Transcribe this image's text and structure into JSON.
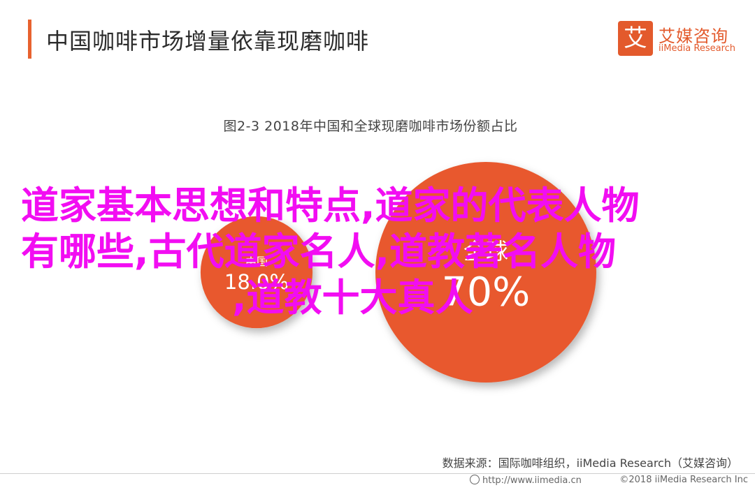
{
  "header": {
    "title": "中国咖啡市场增量依靠现磨咖啡",
    "accent_color": "#e8622f"
  },
  "logo": {
    "mark": "艾",
    "name_cn": "艾媒咨询",
    "name_en": "iiMedia Research"
  },
  "chart_data": {
    "type": "bubble",
    "title": "图2-3 2018年中国和全球现磨咖啡市场份额占比",
    "series": [
      {
        "label": "中国",
        "value": 18,
        "value_label": "18.0%",
        "color": "#e8582f"
      },
      {
        "label": "全球",
        "value": 70,
        "value_label": "70%",
        "color": "#e8582f"
      }
    ]
  },
  "overlay_text": {
    "line1": "道家基本思想和特点,道家的代表人物",
    "line2": "有哪些,古代道家名人,道教著名人物",
    "line3": ",道教十大真人",
    "color": "#f20df2"
  },
  "source": "数据来源：国际咖啡组织，iiMedia Research（艾媒咨询）",
  "footer": {
    "url": "http://www.iimedia.cn",
    "copyright": "©2018  iiMedia Research  Inc"
  }
}
